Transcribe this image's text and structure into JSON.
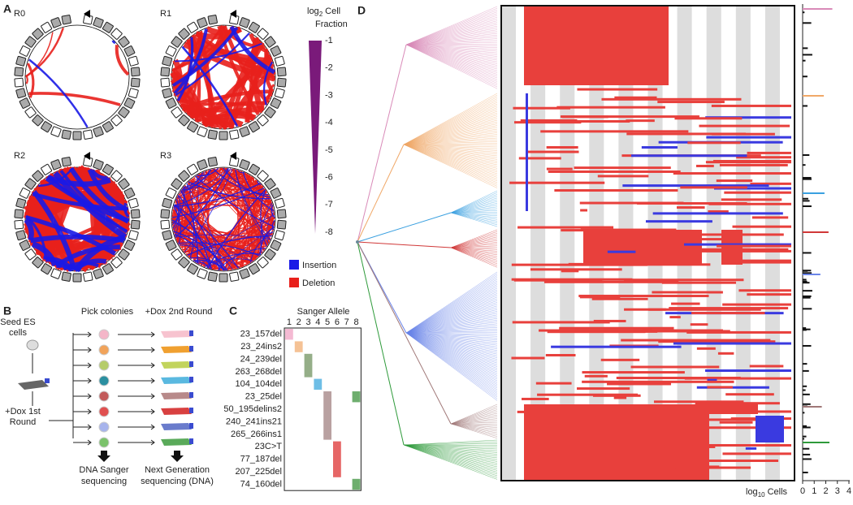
{
  "panel_a": {
    "label": "A",
    "rounds": [
      "R0",
      "R1",
      "R2",
      "R3"
    ],
    "colorbar": {
      "title_prefix": "log",
      "title_subscript": "2",
      "title_rest": "Cell",
      "title_line2": "Fraction",
      "ticks": [
        -1,
        -2,
        -3,
        -4,
        -5,
        -6,
        -7,
        -8
      ]
    },
    "legend": [
      "Insertion",
      "Deletion"
    ]
  },
  "panel_b": {
    "label": "B",
    "seed": [
      "Seed ES",
      "cells"
    ],
    "pick": "Pick colonies",
    "dox2": "+Dox 2nd Round",
    "dox1": [
      "+Dox 1st",
      "Round"
    ],
    "sanger": [
      "DNA Sanger",
      "sequencing"
    ],
    "ngs": [
      "Next Generation",
      "sequencing (DNA)"
    ]
  },
  "panel_c": {
    "label": "C",
    "title": "Sanger Allele",
    "columns": [
      1,
      2,
      3,
      4,
      5,
      6,
      7,
      8
    ],
    "rows": [
      "23_157del",
      "23_24ins2",
      "24_239del",
      "263_268del",
      "104_104del",
      "23_25del",
      "50_195delins2",
      "240_241ins21",
      "265_266ins1",
      "23C>T",
      "77_187del",
      "207_225del",
      "74_160del"
    ]
  },
  "panel_d": {
    "label": "D",
    "axis_prefix": "log",
    "axis_subscript": "10",
    "axis_rest": "Cells",
    "ticks": [
      0,
      1,
      2,
      3,
      4
    ]
  }
}
